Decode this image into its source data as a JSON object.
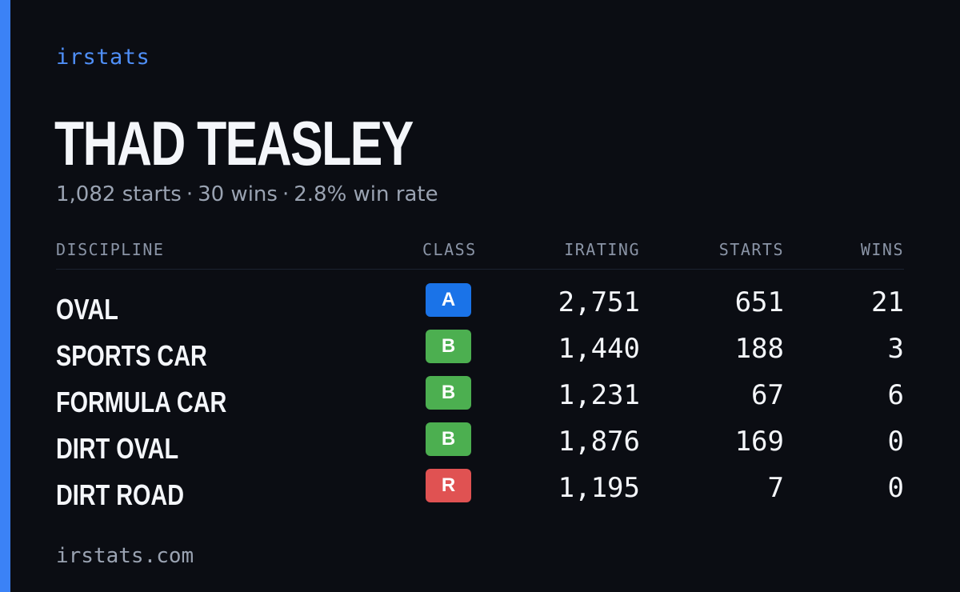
{
  "brand": "irstats",
  "driver": {
    "name": "THAD TEASLEY",
    "summary": [
      "1,082 starts",
      "30 wins",
      "2.8% win rate"
    ],
    "separator": "·"
  },
  "table": {
    "headers": {
      "discipline": "DISCIPLINE",
      "class": "CLASS",
      "irating": "IRATING",
      "starts": "STARTS",
      "wins": "WINS"
    },
    "rows": [
      {
        "discipline": "OVAL",
        "class": "A",
        "irating": "2,751",
        "starts": "651",
        "wins": "21",
        "class_color": "#1a73e8"
      },
      {
        "discipline": "SPORTS CAR",
        "class": "B",
        "irating": "1,440",
        "starts": "188",
        "wins": "3",
        "class_color": "#4caf50"
      },
      {
        "discipline": "FORMULA CAR",
        "class": "B",
        "irating": "1,231",
        "starts": "67",
        "wins": "6",
        "class_color": "#4caf50"
      },
      {
        "discipline": "DIRT OVAL",
        "class": "B",
        "irating": "1,876",
        "starts": "169",
        "wins": "0",
        "class_color": "#4caf50"
      },
      {
        "discipline": "DIRT ROAD",
        "class": "R",
        "irating": "1,195",
        "starts": "7",
        "wins": "0",
        "class_color": "#e05252"
      }
    ]
  },
  "footer": "irstats.com",
  "colors": {
    "background": "#0b0d13",
    "accent": "#3b82f6",
    "brand": "#4f8ff7"
  }
}
